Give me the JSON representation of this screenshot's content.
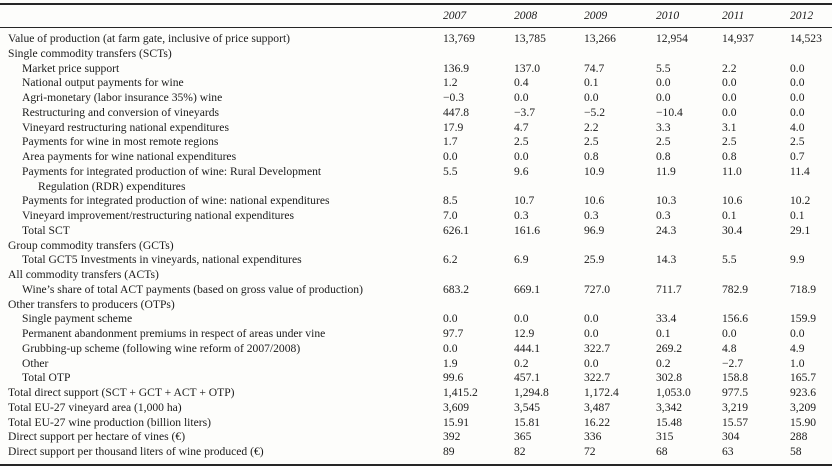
{
  "table": {
    "columns": [
      "2007",
      "2008",
      "2009",
      "2010",
      "2011",
      "2012"
    ],
    "rows": [
      {
        "label": "Value of production (at farm gate, inclusive of price support)",
        "indent": 0,
        "values": [
          "13,769",
          "13,785",
          "13,266",
          "12,954",
          "14,937",
          "14,523"
        ]
      },
      {
        "label": "Single commodity transfers (SCTs)",
        "indent": 0,
        "values": []
      },
      {
        "label": "Market price support",
        "indent": 1,
        "values": [
          "136.9",
          "137.0",
          "74.7",
          "5.5",
          "2.2",
          "0.0"
        ]
      },
      {
        "label": "National output payments for wine",
        "indent": 1,
        "values": [
          "1.2",
          "0.4",
          "0.1",
          "0.0",
          "0.0",
          "0.0"
        ]
      },
      {
        "label": "Agri-monetary (labor insurance 35%) wine",
        "indent": 1,
        "values": [
          "−0.3",
          "0.0",
          "0.0",
          "0.0",
          "0.0",
          "0.0"
        ]
      },
      {
        "label": "Restructuring and conversion of vineyards",
        "indent": 1,
        "values": [
          "447.8",
          "−3.7",
          "−5.2",
          "−10.4",
          "0.0",
          "0.0"
        ]
      },
      {
        "label": "Vineyard restructuring national expenditures",
        "indent": 1,
        "values": [
          "17.9",
          "4.7",
          "2.2",
          "3.3",
          "3.1",
          "4.0"
        ]
      },
      {
        "label": "Payments for wine in most remote regions",
        "indent": 1,
        "values": [
          "1.7",
          "2.5",
          "2.5",
          "2.5",
          "2.5",
          "2.5"
        ]
      },
      {
        "label": "Area payments for wine national expenditures",
        "indent": 1,
        "values": [
          "0.0",
          "0.0",
          "0.8",
          "0.8",
          "0.8",
          "0.7"
        ]
      },
      {
        "lines": [
          "Payments for integrated production of wine: Rural Development",
          "Regulation (RDR) expenditures"
        ],
        "indent": 1,
        "values": [
          "5.5",
          "9.6",
          "10.9",
          "11.9",
          "11.0",
          "11.4"
        ]
      },
      {
        "label": "Payments for integrated production of wine: national expenditures",
        "indent": 1,
        "values": [
          "8.5",
          "10.7",
          "10.6",
          "10.3",
          "10.6",
          "10.2"
        ]
      },
      {
        "label": "Vineyard improvement/restructuring national expenditures",
        "indent": 1,
        "values": [
          "7.0",
          "0.3",
          "0.3",
          "0.3",
          "0.1",
          "0.1"
        ]
      },
      {
        "label": "Total SCT",
        "indent": 1,
        "values": [
          "626.1",
          "161.6",
          "96.9",
          "24.3",
          "30.4",
          "29.1"
        ]
      },
      {
        "label": "Group commodity transfers (GCTs)",
        "indent": 0,
        "values": []
      },
      {
        "label": "Total GCT5 Investments in vineyards, national expenditures",
        "indent": 1,
        "values": [
          "6.2",
          "6.9",
          "25.9",
          "14.3",
          "5.5",
          "9.9"
        ]
      },
      {
        "label": "All commodity transfers (ACTs)",
        "indent": 0,
        "values": []
      },
      {
        "label": "Wine’s share of total ACT payments (based on gross value of production)",
        "indent": 1,
        "values": [
          "683.2",
          "669.1",
          "727.0",
          "711.7",
          "782.9",
          "718.9"
        ]
      },
      {
        "label": "Other transfers to producers (OTPs)",
        "indent": 0,
        "values": []
      },
      {
        "label": "Single payment scheme",
        "indent": 1,
        "values": [
          "0.0",
          "0.0",
          "0.0",
          "33.4",
          "156.6",
          "159.9"
        ]
      },
      {
        "label": "Permanent abandonment premiums in respect of areas under vine",
        "indent": 1,
        "values": [
          "97.7",
          "12.9",
          "0.0",
          "0.1",
          "0.0",
          "0.0"
        ]
      },
      {
        "label": "Grubbing-up scheme (following wine reform of 2007/2008)",
        "indent": 1,
        "values": [
          "0.0",
          "444.1",
          "322.7",
          "269.2",
          "4.8",
          "4.9"
        ]
      },
      {
        "label": "Other",
        "indent": 1,
        "values": [
          "1.9",
          "0.2",
          "0.0",
          "0.2",
          "−2.7",
          "1.0"
        ]
      },
      {
        "label": "Total OTP",
        "indent": 1,
        "values": [
          "99.6",
          "457.1",
          "322.7",
          "302.8",
          "158.8",
          "165.7"
        ]
      },
      {
        "label": "Total direct support (SCT + GCT + ACT + OTP)",
        "indent": 0,
        "values": [
          "1,415.2",
          "1,294.8",
          "1,172.4",
          "1,053.0",
          "977.5",
          "923.6"
        ]
      },
      {
        "label": "Total EU-27 vineyard area (1,000 ha)",
        "indent": 0,
        "values": [
          "3,609",
          "3,545",
          "3,487",
          "3,342",
          "3,219",
          "3,209"
        ]
      },
      {
        "label": "Total EU-27 wine production (billion liters)",
        "indent": 0,
        "values": [
          "15.91",
          "15.81",
          "16.22",
          "15.48",
          "15.57",
          "15.90"
        ]
      },
      {
        "label": "Direct support per hectare of vines (€)",
        "indent": 0,
        "values": [
          "392",
          "365",
          "336",
          "315",
          "304",
          "288"
        ]
      },
      {
        "label": "Direct support per thousand liters of wine produced (€)",
        "indent": 0,
        "values": [
          "89",
          "82",
          "72",
          "68",
          "63",
          "58"
        ]
      }
    ]
  }
}
